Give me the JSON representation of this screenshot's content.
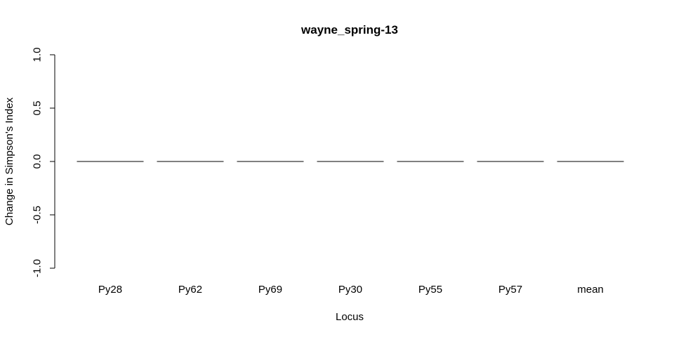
{
  "chart_data": {
    "type": "bar",
    "title": "wayne_spring-13",
    "xlabel": "Locus",
    "ylabel": "Change in Simpson's Index",
    "categories": [
      "Py28",
      "Py62",
      "Py69",
      "Py30",
      "Py55",
      "Py57",
      "mean"
    ],
    "values": [
      0,
      0,
      0,
      0,
      0,
      0,
      0
    ],
    "ylim": [
      -1.0,
      1.0
    ],
    "yticks": [
      "-1.0",
      "-0.5",
      "0.0",
      "0.5",
      "1.0"
    ],
    "grid": false,
    "legend": "none"
  }
}
